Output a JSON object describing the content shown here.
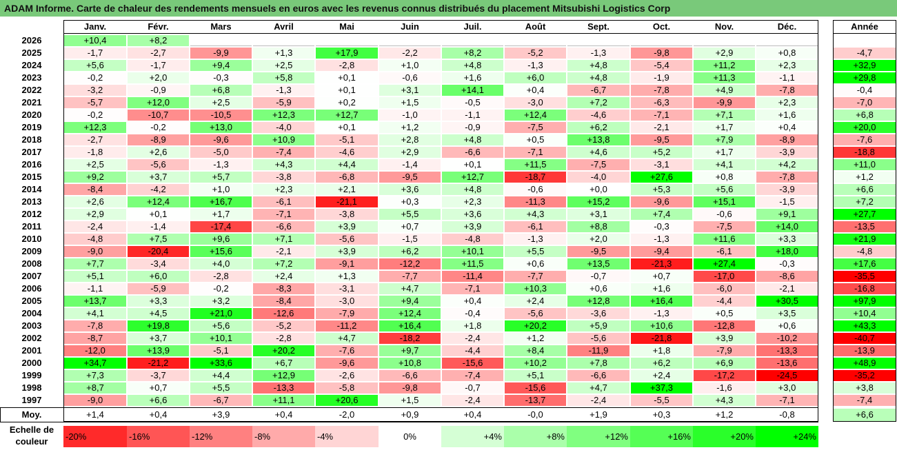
{
  "title": "ADAM Informe. Carte de chaleur des rendements mensuels en euros avec les revenus connus distribués du placement Mitsubishi Logistics Corp",
  "year_header": "Année",
  "avg_label": "Moy.",
  "legend": {
    "title_line1": "Echelle de",
    "title_line2": "couleur",
    "steps": [
      {
        "label": "-20%",
        "value": -20
      },
      {
        "label": "-16%",
        "value": -16
      },
      {
        "label": "-12%",
        "value": -12
      },
      {
        "label": "-8%",
        "value": -8
      },
      {
        "label": "-4%",
        "value": -4
      },
      {
        "label": "0%",
        "value": 0
      },
      {
        "label": "+4%",
        "value": 4
      },
      {
        "label": "+8%",
        "value": 8
      },
      {
        "label": "+12%",
        "value": 12
      },
      {
        "label": "+16%",
        "value": 16
      },
      {
        "label": "+20%",
        "value": 20
      },
      {
        "label": "+24%",
        "value": 24
      }
    ]
  },
  "colors": {
    "max_red": "#ff0000",
    "max_green": "#00ff00",
    "white": "#ffffff",
    "title_bg": "#79c97a"
  },
  "chart_data": {
    "type": "heatmap",
    "months": [
      "Janv.",
      "Févr.",
      "Mars",
      "Avril",
      "Mai",
      "Juin",
      "Juil.",
      "Août",
      "Sept.",
      "Oct.",
      "Nov.",
      "Déc."
    ],
    "rows": [
      {
        "year": "2026",
        "values": [
          "+10,4",
          "+8,2",
          "",
          "",
          "",
          "",
          "",
          "",
          "",
          "",
          "",
          ""
        ],
        "annual": ""
      },
      {
        "year": "2025",
        "values": [
          "-1,7",
          "-2,7",
          "-9,9",
          "+1,3",
          "+17,9",
          "-2,2",
          "+8,2",
          "-5,2",
          "-1,3",
          "-9,8",
          "+2,9",
          "+0,8"
        ],
        "annual": "-4,7"
      },
      {
        "year": "2024",
        "values": [
          "+5,6",
          "-1,7",
          "+9,4",
          "+2,5",
          "-2,8",
          "+1,0",
          "+4,8",
          "-1,3",
          "+4,8",
          "-5,4",
          "+11,2",
          "+2,3"
        ],
        "annual": "+32,9"
      },
      {
        "year": "2023",
        "values": [
          "-0,2",
          "+2,0",
          "-0,3",
          "+5,8",
          "+0,1",
          "-0,6",
          "+1,6",
          "+6,0",
          "+4,8",
          "-1,9",
          "+11,3",
          "-1,1"
        ],
        "annual": "+29,8"
      },
      {
        "year": "2022",
        "values": [
          "-3,2",
          "-0,9",
          "+6,8",
          "-1,3",
          "+0,1",
          "+3,1",
          "+14,1",
          "+0,4",
          "-6,7",
          "-7,8",
          "+4,9",
          "-7,8"
        ],
        "annual": "-0,4"
      },
      {
        "year": "2021",
        "values": [
          "-5,7",
          "+12,0",
          "+2,5",
          "-5,9",
          "+0,2",
          "+1,5",
          "-0,5",
          "-3,0",
          "+7,2",
          "-6,3",
          "-9,9",
          "+2,3"
        ],
        "annual": "-7,0"
      },
      {
        "year": "2020",
        "values": [
          "-0,2",
          "-10,7",
          "-10,5",
          "+12,3",
          "+12,7",
          "-1,0",
          "-1,1",
          "+12,4",
          "-4,6",
          "-7,1",
          "+7,1",
          "+1,6"
        ],
        "annual": "+6,8"
      },
      {
        "year": "2019",
        "values": [
          "+12,3",
          "-0,2",
          "+13,0",
          "-4,0",
          "+0,1",
          "+1,2",
          "-0,9",
          "-7,5",
          "+6,2",
          "-2,1",
          "+1,7",
          "+0,4"
        ],
        "annual": "+20,0"
      },
      {
        "year": "2018",
        "values": [
          "-2,7",
          "-8,9",
          "-9,6",
          "+10,9",
          "-5,1",
          "+2,8",
          "+4,8",
          "+0,5",
          "+13,8",
          "-9,5",
          "+7,9",
          "-8,9"
        ],
        "annual": "-7,6"
      },
      {
        "year": "2017",
        "values": [
          "-1,8",
          "+2,6",
          "-5,0",
          "-7,4",
          "-4,6",
          "+2,9",
          "-6,6",
          "-7,1",
          "+4,6",
          "+5,2",
          "+1,7",
          "-3,9"
        ],
        "annual": "-18,8"
      },
      {
        "year": "2016",
        "values": [
          "+2,5",
          "-5,6",
          "-1,3",
          "+4,3",
          "+4,4",
          "-1,4",
          "+0,1",
          "+11,5",
          "-7,5",
          "-3,1",
          "+4,1",
          "+4,2"
        ],
        "annual": "+11,0"
      },
      {
        "year": "2015",
        "values": [
          "+9,2",
          "+3,7",
          "+5,7",
          "-3,8",
          "-6,8",
          "-9,5",
          "+12,7",
          "-18,7",
          "-4,0",
          "+27,6",
          "+0,8",
          "-7,8"
        ],
        "annual": "+1,2"
      },
      {
        "year": "2014",
        "values": [
          "-8,4",
          "-4,2",
          "+1,0",
          "+2,3",
          "+2,1",
          "+3,6",
          "+4,8",
          "-0,6",
          "+0,0",
          "+5,3",
          "+5,6",
          "-3,9"
        ],
        "annual": "+6,6"
      },
      {
        "year": "2013",
        "values": [
          "+2,6",
          "+12,4",
          "+16,7",
          "-6,1",
          "-21,1",
          "+0,3",
          "+2,3",
          "-11,3",
          "+15,2",
          "-9,6",
          "+15,1",
          "-1,5"
        ],
        "annual": "+7,2"
      },
      {
        "year": "2012",
        "values": [
          "+2,9",
          "+0,1",
          "+1,7",
          "-7,1",
          "-3,8",
          "+5,5",
          "+3,6",
          "+4,3",
          "+3,1",
          "+7,4",
          "-0,6",
          "+9,1"
        ],
        "annual": "+27,7"
      },
      {
        "year": "2011",
        "values": [
          "-2,4",
          "-1,4",
          "-17,4",
          "-6,6",
          "+3,9",
          "+0,7",
          "+3,9",
          "-6,1",
          "+8,8",
          "-0,3",
          "-7,5",
          "+14,0"
        ],
        "annual": "-13,5"
      },
      {
        "year": "2010",
        "values": [
          "-4,8",
          "+7,5",
          "+9,6",
          "+7,1",
          "-5,6",
          "-1,5",
          "-4,8",
          "-1,3",
          "+2,0",
          "-1,3",
          "+11,6",
          "+3,3"
        ],
        "annual": "+21,9"
      },
      {
        "year": "2009",
        "values": [
          "-9,0",
          "-20,4",
          "+15,6",
          "-2,1",
          "+3,9",
          "+6,2",
          "+10,1",
          "+5,5",
          "-9,5",
          "-9,4",
          "-6,1",
          "+18,0"
        ],
        "annual": "-4,8"
      },
      {
        "year": "2008",
        "values": [
          "+7,7",
          "-3,4",
          "+4,0",
          "+7,2",
          "-9,1",
          "-12,2",
          "+11,5",
          "+0,6",
          "+13,5",
          "-21,3",
          "+27,4",
          "-0,3"
        ],
        "annual": "+17,6"
      },
      {
        "year": "2007",
        "values": [
          "+5,1",
          "+6,0",
          "-2,8",
          "+2,4",
          "+1,3",
          "-7,7",
          "-11,4",
          "-7,7",
          "-0,7",
          "+0,7",
          "-17,0",
          "-8,6"
        ],
        "annual": "-35,5"
      },
      {
        "year": "2006",
        "values": [
          "-1,1",
          "-5,9",
          "-0,2",
          "-8,3",
          "-3,1",
          "+4,7",
          "-7,1",
          "+10,3",
          "+0,6",
          "+1,6",
          "-6,0",
          "-2,1"
        ],
        "annual": "-16,8"
      },
      {
        "year": "2005",
        "values": [
          "+13,7",
          "+3,3",
          "+3,2",
          "-8,4",
          "-3,0",
          "+9,4",
          "+0,4",
          "+2,4",
          "+12,8",
          "+16,4",
          "-4,4",
          "+30,5"
        ],
        "annual": "+97,9"
      },
      {
        "year": "2004",
        "values": [
          "+4,1",
          "+4,5",
          "+21,0",
          "-12,6",
          "-7,9",
          "+12,4",
          "-0,4",
          "-5,6",
          "-3,6",
          "-1,3",
          "+0,5",
          "+3,5"
        ],
        "annual": "+10,4"
      },
      {
        "year": "2003",
        "values": [
          "-7,8",
          "+19,8",
          "+5,6",
          "-5,2",
          "-11,2",
          "+16,4",
          "+1,8",
          "+20,2",
          "+5,9",
          "+10,6",
          "-12,8",
          "+0,6"
        ],
        "annual": "+43,3"
      },
      {
        "year": "2002",
        "values": [
          "-8,7",
          "+3,7",
          "+10,1",
          "-2,8",
          "+4,7",
          "-18,2",
          "-2,4",
          "+1,2",
          "-5,6",
          "-21,8",
          "+3,9",
          "-10,2"
        ],
        "annual": "-40,7"
      },
      {
        "year": "2001",
        "values": [
          "-12,0",
          "+13,9",
          "-5,1",
          "+20,2",
          "-7,6",
          "+9,7",
          "-4,4",
          "+8,4",
          "-11,9",
          "+1,8",
          "-7,9",
          "-13,3"
        ],
        "annual": "-13,9"
      },
      {
        "year": "2000",
        "values": [
          "+34,7",
          "-21,2",
          "+33,6",
          "+6,7",
          "-9,6",
          "+10,8",
          "-15,6",
          "+10,2",
          "+7,8",
          "+6,2",
          "+6,9",
          "-13,6"
        ],
        "annual": "+48,9"
      },
      {
        "year": "1999",
        "values": [
          "+7,3",
          "-3,7",
          "+4,4",
          "+12,9",
          "-2,6",
          "-6,6",
          "-7,4",
          "+5,1",
          "-6,6",
          "+2,4",
          "-17,2",
          "-24,5"
        ],
        "annual": "-35,2"
      },
      {
        "year": "1998",
        "values": [
          "+8,7",
          "+0,7",
          "+5,5",
          "-13,3",
          "-5,8",
          "-9,8",
          "-0,7",
          "-15,6",
          "+4,7",
          "+37,3",
          "-1,6",
          "+3,0"
        ],
        "annual": "+3,8"
      },
      {
        "year": "1997",
        "values": [
          "-9,0",
          "+6,6",
          "-6,7",
          "+11,1",
          "+20,6",
          "+1,5",
          "-2,4",
          "-13,7",
          "-2,4",
          "-5,5",
          "+4,3",
          "-7,1"
        ],
        "annual": "-7,4"
      }
    ],
    "averages": {
      "values": [
        "+1,4",
        "+0,4",
        "+3,9",
        "+0,4",
        "-2,0",
        "+0,9",
        "+0,4",
        "-0,0",
        "+1,9",
        "+0,3",
        "+1,2",
        "-0,8"
      ],
      "annual": "+6,6"
    },
    "color_scale": {
      "min": -24,
      "max": 24
    }
  }
}
